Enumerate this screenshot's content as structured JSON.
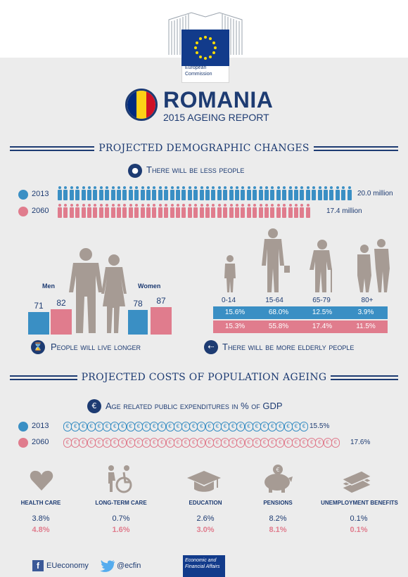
{
  "header": {
    "logo_line1": "European",
    "logo_line2": "Commission"
  },
  "title": {
    "country": "ROMANIA",
    "subtitle": "2015 AGEING REPORT",
    "flag_colors": [
      "#002b7f",
      "#fcd116",
      "#ce1126"
    ]
  },
  "colors": {
    "navy": "#1d3b72",
    "blue_2013": "#3a8fc4",
    "pink_2060": "#e07c8d",
    "silhouette": "#a69b94"
  },
  "demographics": {
    "section_title": "PROJECTED DEMOGRAPHIC CHANGES",
    "population": {
      "heading": "There will be less people",
      "icon": "group-icon",
      "rows": [
        {
          "year": "2013",
          "value": "20.0 million",
          "amount": 20.0
        },
        {
          "year": "2060",
          "value": "17.4 million",
          "amount": 17.4
        }
      ]
    },
    "life_expectancy": {
      "heading": "People will live longer",
      "icon": "hourglass-icon",
      "men_label": "Men",
      "women_label": "Women",
      "men": {
        "v2013": "71",
        "v2060": "82"
      },
      "women": {
        "v2013": "78",
        "v2060": "87"
      }
    },
    "elderly": {
      "heading": "There will be more elderly people",
      "icon": "cane-icon",
      "age_groups": [
        "0-14",
        "15-64",
        "65-79",
        "80+"
      ],
      "row_2013": [
        "15.6%",
        "68.0%",
        "12.5%",
        "3.9%"
      ],
      "row_2060": [
        "15.3%",
        "55.8%",
        "17.4%",
        "11.5%"
      ]
    }
  },
  "costs": {
    "section_title": "PROJECTED COSTS OF POPULATION AGEING",
    "heading": "Age related public expenditures in % of GDP",
    "icon": "euro-icon",
    "rows": [
      {
        "year": "2013",
        "value": "15.5%",
        "amount": 15.5
      },
      {
        "year": "2060",
        "value": "17.6%",
        "amount": 17.6
      }
    ],
    "categories": [
      {
        "name": "HEALTH CARE",
        "icon": "heart-icon",
        "v2013": "3.8%",
        "v2060": "4.8%"
      },
      {
        "name": "LONG-TERM CARE",
        "icon": "wheelchair-icon",
        "v2013": "0.7%",
        "v2060": "1.6%"
      },
      {
        "name": "EDUCATION",
        "icon": "graduation-cap-icon",
        "v2013": "2.6%",
        "v2060": "3.0%"
      },
      {
        "name": "PENSIONS",
        "icon": "piggy-bank-icon",
        "v2013": "8.2%",
        "v2060": "8.1%"
      },
      {
        "name": "UNEMPLOYMENT BENEFITS",
        "icon": "money-stack-icon",
        "v2013": "0.1%",
        "v2060": "0.1%"
      }
    ]
  },
  "footer": {
    "facebook": "EUeconomy",
    "twitter": "@ecfin",
    "dg_line1": "Economic and",
    "dg_line2": "Financial Affairs"
  }
}
